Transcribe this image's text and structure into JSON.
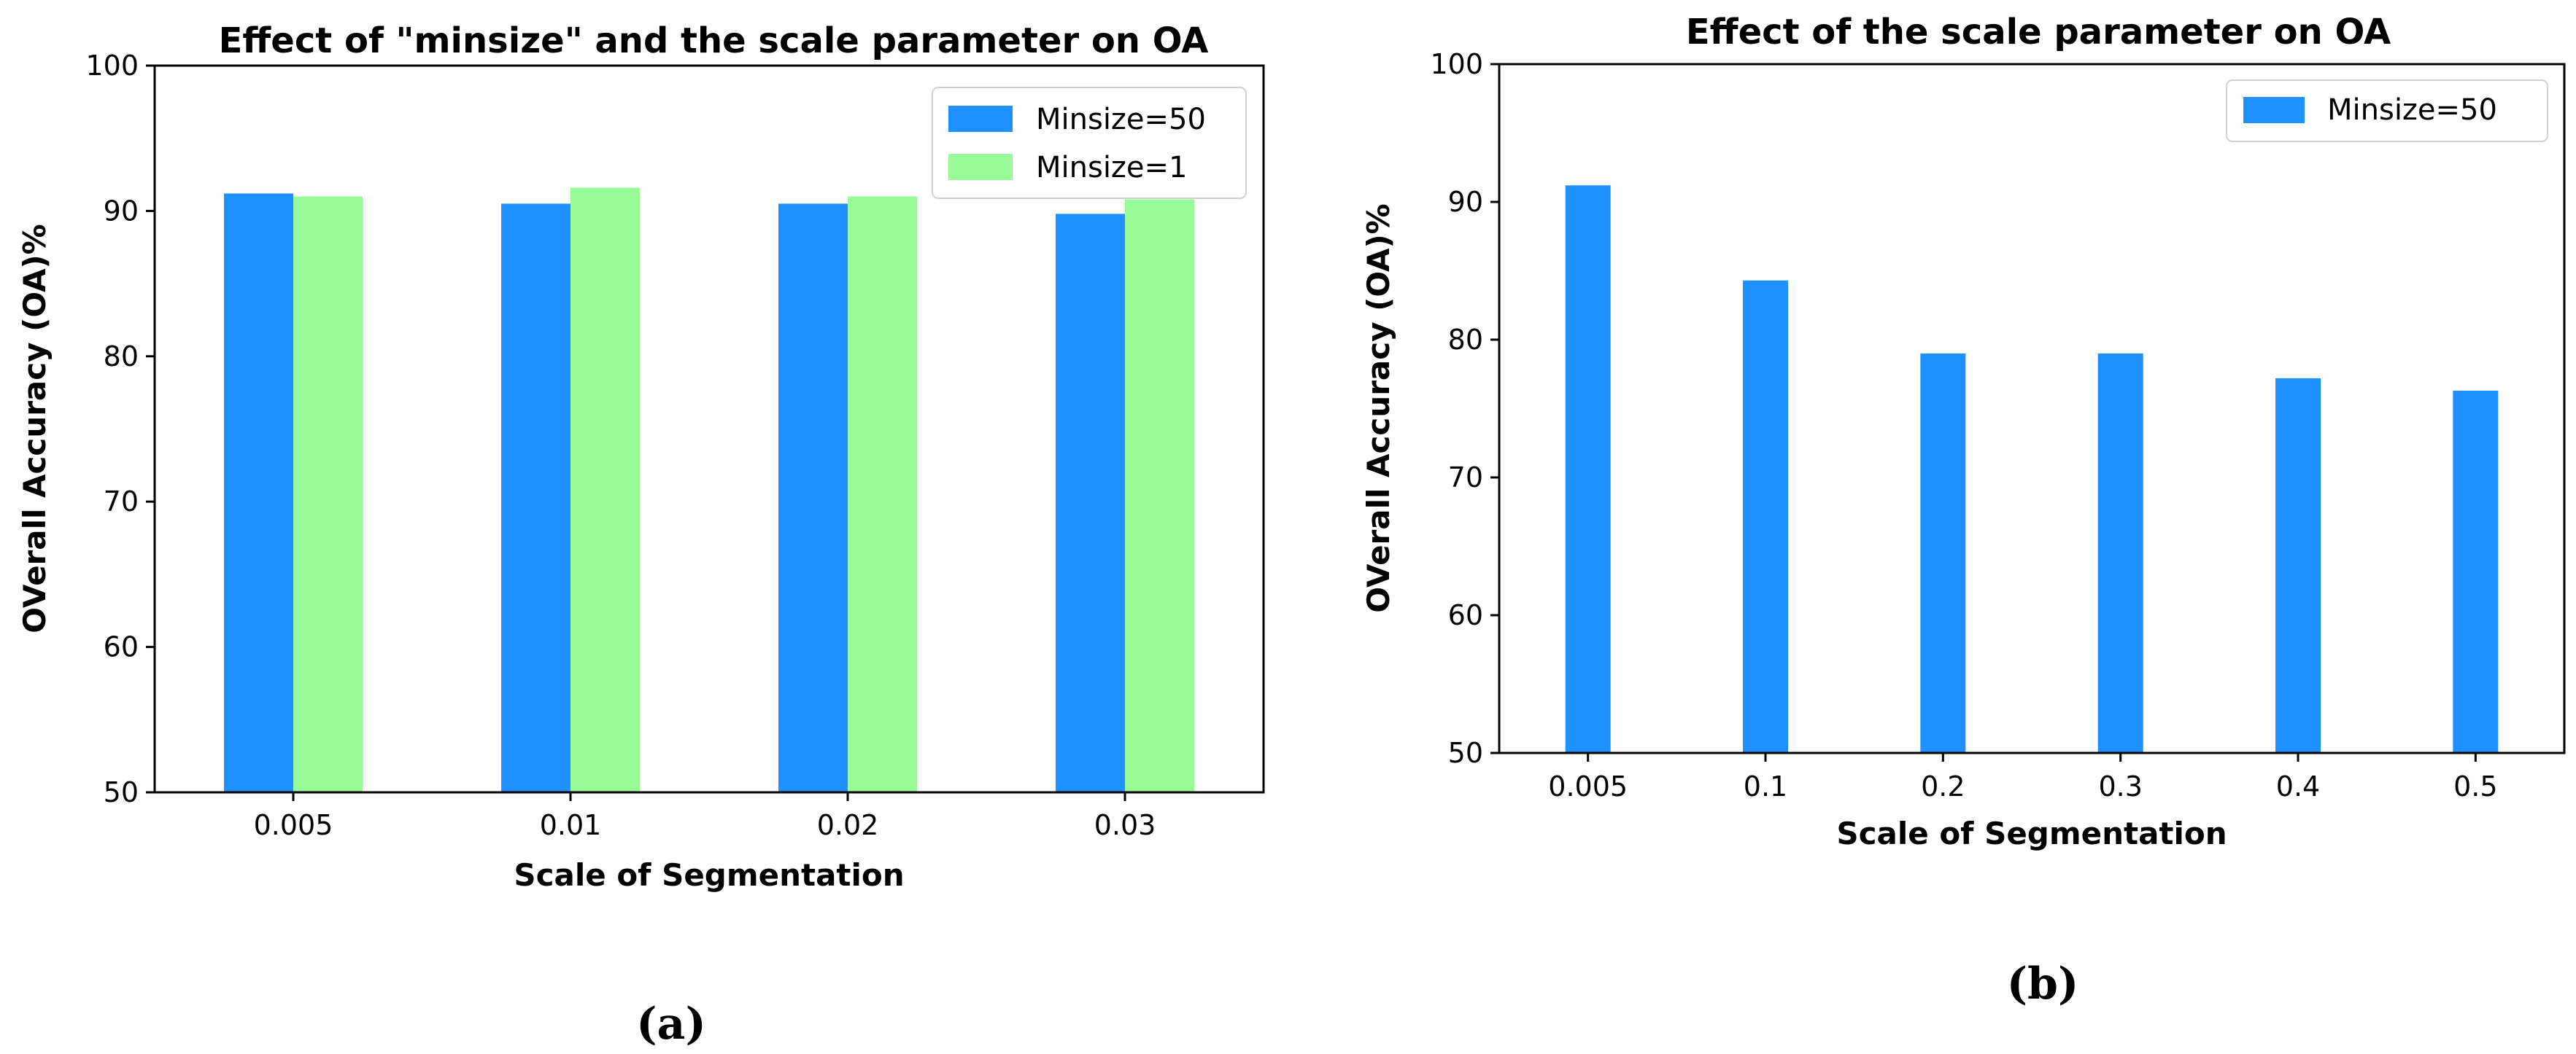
{
  "chart_data": [
    {
      "type": "bar",
      "title": "Effect of \"minsize\" and the scale parameter on OA",
      "xlabel": "Scale of Segmentation",
      "ylabel": "OVerall Accuracy (OA)%",
      "categories": [
        "0.005",
        "0.01",
        "0.02",
        "0.03"
      ],
      "series": [
        {
          "name": "Minsize=50",
          "color": "#1e90ff",
          "values": [
            91.2,
            90.5,
            90.5,
            89.8
          ]
        },
        {
          "name": "Minsize=1",
          "color": "#98fb98",
          "values": [
            91.0,
            91.6,
            91.0,
            90.8
          ]
        }
      ],
      "ylim": [
        50,
        100
      ],
      "yticks": [
        "50",
        "60",
        "70",
        "80",
        "90",
        "100"
      ],
      "legend": "top-right",
      "grid": false,
      "caption": "(a)"
    },
    {
      "type": "bar",
      "title": "Effect of the scale parameter on OA",
      "xlabel": "Scale of Segmentation",
      "ylabel": "OVerall Accuracy (OA)%",
      "categories": [
        "0.005",
        "0.1",
        "0.2",
        "0.3",
        "0.4",
        "0.5"
      ],
      "series": [
        {
          "name": "Minsize=50",
          "color": "#1e90ff",
          "values": [
            91.2,
            84.3,
            79.0,
            79.0,
            77.2,
            76.3
          ]
        }
      ],
      "ylim": [
        50,
        100
      ],
      "yticks": [
        "50",
        "60",
        "70",
        "80",
        "90",
        "100"
      ],
      "legend": "top-right",
      "grid": false,
      "caption": "(b)"
    }
  ]
}
